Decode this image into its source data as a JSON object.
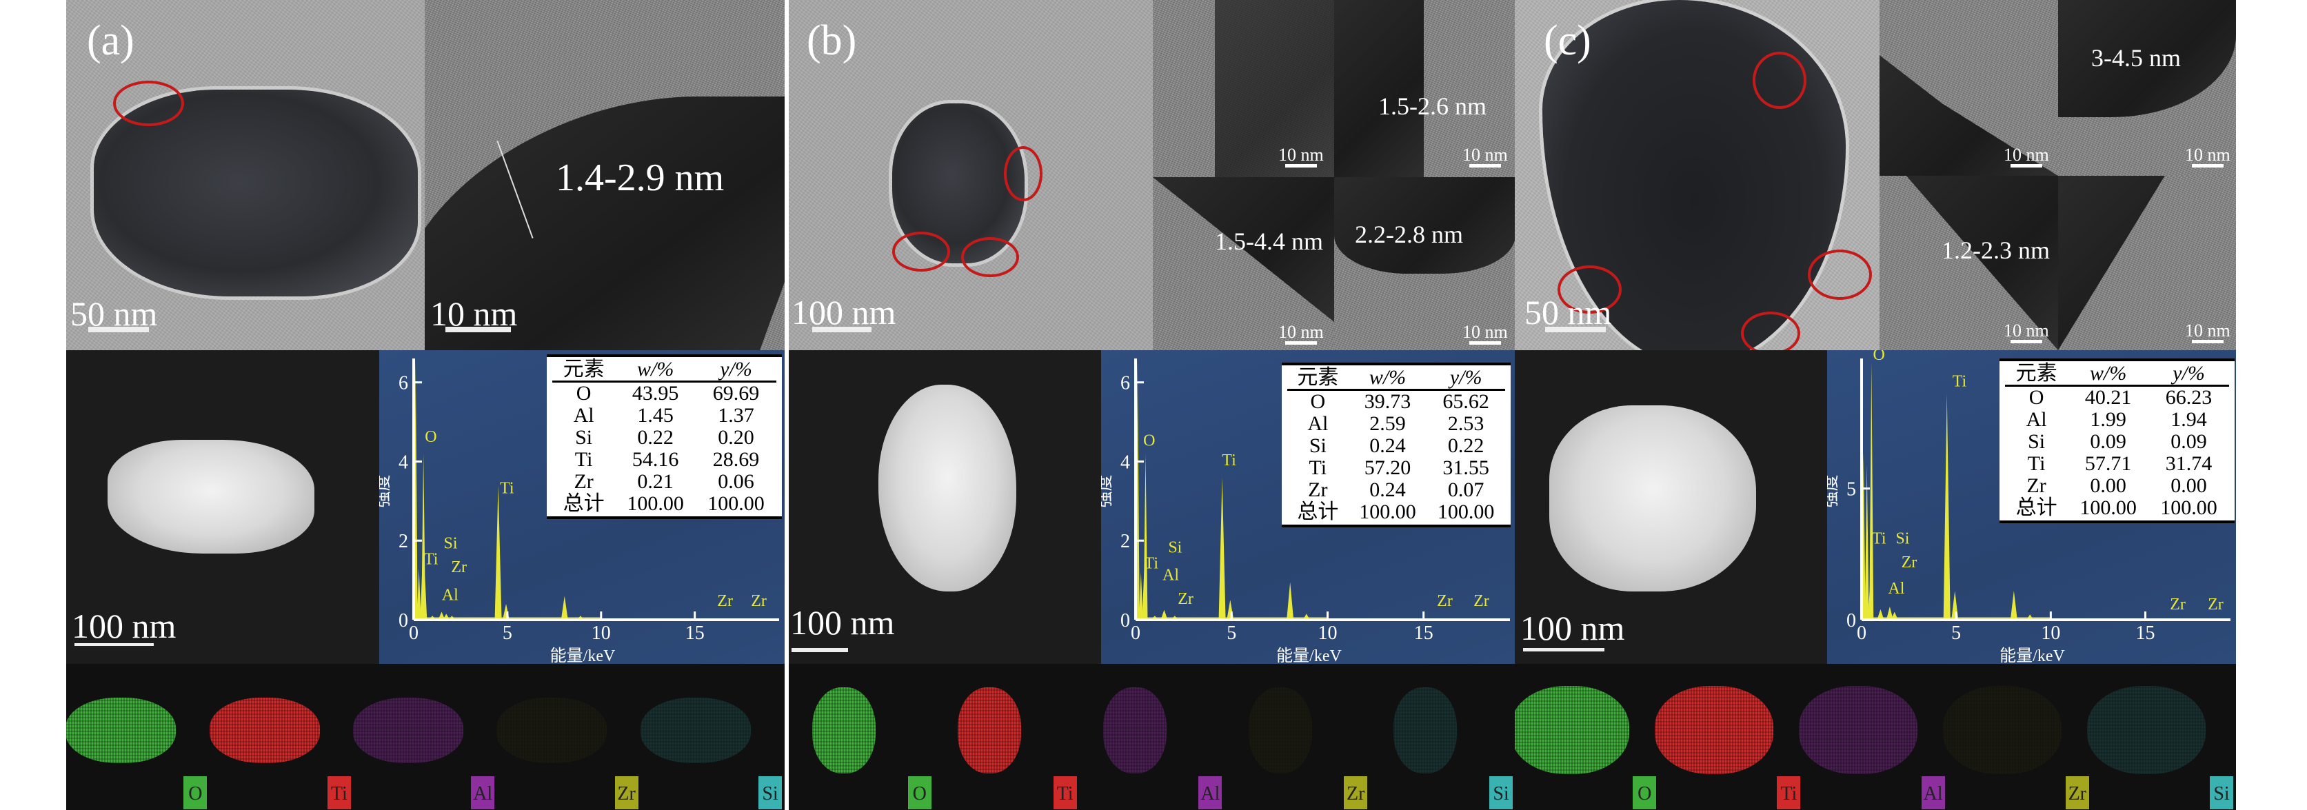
{
  "panels": [
    {
      "label": "(a)",
      "tem_scale": "50 nm",
      "hrtem": [
        {
          "scale": "10 nm",
          "thickness": "1.4-2.9 nm"
        }
      ],
      "haadf_scale": "100 nm",
      "table": {
        "headers": [
          "元素",
          "w/%",
          "y/%"
        ],
        "rows": [
          [
            "O",
            "43.95",
            "69.69"
          ],
          [
            "Al",
            "1.45",
            "1.37"
          ],
          [
            "Si",
            "0.22",
            "0.20"
          ],
          [
            "Ti",
            "54.16",
            "28.69"
          ],
          [
            "Zr",
            "0.21",
            "0.06"
          ],
          [
            "总计",
            "100.00",
            "100.00"
          ]
        ]
      },
      "maps": [
        "O",
        "Ti",
        "Al",
        "Zr",
        "Si"
      ]
    },
    {
      "label": "(b)",
      "tem_scale": "100 nm",
      "hrtem": [
        {
          "scale": "10 nm",
          "thickness": ""
        },
        {
          "scale": "10 nm",
          "thickness": "1.5-2.6 nm"
        },
        {
          "scale": "10 nm",
          "thickness": "1.5-4.4 nm"
        },
        {
          "scale": "10 nm",
          "thickness": "2.2-2.8 nm"
        }
      ],
      "haadf_scale": "100 nm",
      "table": {
        "headers": [
          "元素",
          "w/%",
          "y/%"
        ],
        "rows": [
          [
            "O",
            "39.73",
            "65.62"
          ],
          [
            "Al",
            "2.59",
            "2.53"
          ],
          [
            "Si",
            "0.24",
            "0.22"
          ],
          [
            "Ti",
            "57.20",
            "31.55"
          ],
          [
            "Zr",
            "0.24",
            "0.07"
          ],
          [
            "总计",
            "100.00",
            "100.00"
          ]
        ]
      },
      "maps": [
        "O",
        "Ti",
        "Al",
        "Zr",
        "Si"
      ]
    },
    {
      "label": "(c)",
      "tem_scale": "50 nm",
      "hrtem": [
        {
          "scale": "10 nm",
          "thickness": ""
        },
        {
          "scale": "10 nm",
          "thickness": "3-4.5 nm"
        },
        {
          "scale": "10 nm",
          "thickness": "1.2-2.3 nm"
        },
        {
          "scale": "10 nm",
          "thickness": ""
        }
      ],
      "haadf_scale": "100 nm",
      "table": {
        "headers": [
          "元素",
          "w/%",
          "y/%"
        ],
        "rows": [
          [
            "O",
            "40.21",
            "66.23"
          ],
          [
            "Al",
            "1.99",
            "1.94"
          ],
          [
            "Si",
            "0.09",
            "0.09"
          ],
          [
            "Ti",
            "57.71",
            "31.74"
          ],
          [
            "Zr",
            "0.00",
            "0.00"
          ],
          [
            "总计",
            "100.00",
            "100.00"
          ]
        ]
      },
      "maps": [
        "O",
        "Ti",
        "Al",
        "Zr",
        "Si"
      ]
    }
  ],
  "map_colors": {
    "O": "#3fae3a",
    "Ti": "#d02a2a",
    "Al": "#8e2fa0",
    "Zr": "#a4a61e",
    "Si": "#3bb2b2"
  },
  "colors": {
    "spectrum_bg": "#2c4878",
    "peak": "#e8e838",
    "highlight_ring": "#c41a1a"
  },
  "chart_data": [
    {
      "type": "bar",
      "xlabel": "能量/keV",
      "ylabel": "强度",
      "xlim": [
        0,
        19.5
      ],
      "ylim": [
        0,
        6.5
      ],
      "xticks": [
        0,
        5,
        10,
        15
      ],
      "yticks": [
        0,
        2,
        4,
        6
      ],
      "peaks": [
        [
          0.1,
          6.6
        ],
        [
          0.28,
          1.3
        ],
        [
          0.45,
          1.2
        ],
        [
          0.52,
          4.2
        ],
        [
          0.6,
          1.1
        ],
        [
          1.0,
          0.1
        ],
        [
          1.49,
          0.2
        ],
        [
          1.74,
          0.15
        ],
        [
          2.04,
          0.1
        ],
        [
          4.51,
          3.4
        ],
        [
          4.93,
          0.4
        ],
        [
          8.05,
          0.6
        ],
        [
          8.9,
          0.1
        ]
      ],
      "peak_labels": [
        {
          "text": "O",
          "x": 0.6,
          "y": 4.5
        },
        {
          "text": "Ti",
          "x": 4.6,
          "y": 3.2
        },
        {
          "text": "Si",
          "x": 1.6,
          "y": 1.8
        },
        {
          "text": "Ti",
          "x": 0.55,
          "y": 1.4
        },
        {
          "text": "Zr",
          "x": 2.0,
          "y": 1.2
        },
        {
          "text": "Al",
          "x": 1.5,
          "y": 0.5
        },
        {
          "text": "Zr",
          "x": 16.2,
          "y": 0.35
        },
        {
          "text": "Zr",
          "x": 18.0,
          "y": 0.35
        }
      ]
    },
    {
      "type": "bar",
      "xlabel": "能量/keV",
      "ylabel": "强度",
      "xlim": [
        0,
        19.5
      ],
      "ylim": [
        0,
        6.5
      ],
      "xticks": [
        0,
        5,
        10,
        15
      ],
      "yticks": [
        0,
        2,
        4,
        6
      ],
      "peaks": [
        [
          0.1,
          6.6
        ],
        [
          0.28,
          1.2
        ],
        [
          0.45,
          1.3
        ],
        [
          0.52,
          4.2
        ],
        [
          1.0,
          0.1
        ],
        [
          1.49,
          0.25
        ],
        [
          2.04,
          0.1
        ],
        [
          4.51,
          3.6
        ],
        [
          4.93,
          0.5
        ],
        [
          8.05,
          0.95
        ],
        [
          8.9,
          0.15
        ]
      ],
      "peak_labels": [
        {
          "text": "O",
          "x": 0.4,
          "y": 4.4
        },
        {
          "text": "Ti",
          "x": 4.5,
          "y": 3.9
        },
        {
          "text": "Si",
          "x": 1.7,
          "y": 1.7
        },
        {
          "text": "Ti",
          "x": 0.45,
          "y": 1.3
        },
        {
          "text": "Al",
          "x": 1.4,
          "y": 1.0
        },
        {
          "text": "Zr",
          "x": 2.2,
          "y": 0.4
        },
        {
          "text": "Zr",
          "x": 15.7,
          "y": 0.35
        },
        {
          "text": "Zr",
          "x": 17.6,
          "y": 0.35
        }
      ]
    },
    {
      "type": "bar",
      "xlabel": "能量/keV",
      "ylabel": "强度",
      "xlim": [
        0,
        19.5
      ],
      "ylim": [
        0,
        9.8
      ],
      "xticks": [
        0,
        5,
        10,
        15
      ],
      "yticks": [
        0,
        5
      ],
      "peaks": [
        [
          0.1,
          6.4
        ],
        [
          0.28,
          5.9
        ],
        [
          0.45,
          1.5
        ],
        [
          0.52,
          9.8
        ],
        [
          1.0,
          0.4
        ],
        [
          1.49,
          0.5
        ],
        [
          1.74,
          0.3
        ],
        [
          4.51,
          8.6
        ],
        [
          4.93,
          1.1
        ],
        [
          8.05,
          1.1
        ],
        [
          8.9,
          0.2
        ]
      ],
      "peak_labels": [
        {
          "text": "O",
          "x": 0.6,
          "y": 9.9
        },
        {
          "text": "Ti",
          "x": 4.8,
          "y": 8.9
        },
        {
          "text": "Ti",
          "x": 0.55,
          "y": 2.9
        },
        {
          "text": "Si",
          "x": 1.8,
          "y": 2.9
        },
        {
          "text": "Zr",
          "x": 2.1,
          "y": 2.0
        },
        {
          "text": "Al",
          "x": 1.4,
          "y": 1.0
        },
        {
          "text": "Zr",
          "x": 16.3,
          "y": 0.4
        },
        {
          "text": "Zr",
          "x": 18.3,
          "y": 0.4
        }
      ]
    }
  ]
}
